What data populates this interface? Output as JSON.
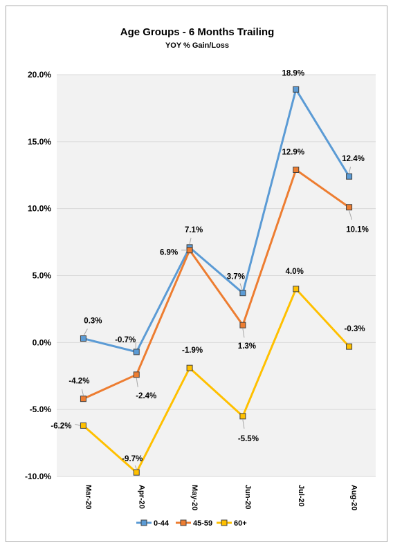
{
  "chart_data": {
    "type": "line",
    "title": "Age Groups - 6 Months Trailing",
    "subtitle": "YOY % Gain/Loss",
    "categories": [
      "Mar-20",
      "Apr-20",
      "May-20",
      "Jun-20",
      "Jul-20",
      "Aug-20"
    ],
    "y_ticks": [
      "-10.0%",
      "-5.0%",
      "0.0%",
      "5.0%",
      "10.0%",
      "15.0%",
      "20.0%"
    ],
    "ylim": [
      -10,
      20
    ],
    "grid": true,
    "legend_position": "bottom",
    "series": [
      {
        "name": "0-44",
        "color": "#5b9bd5",
        "values": [
          0.3,
          -0.7,
          7.1,
          3.7,
          18.9,
          12.4
        ],
        "labels": [
          "0.3%",
          "-0.7%",
          "7.1%",
          "3.7%",
          "18.9%",
          "12.4%"
        ]
      },
      {
        "name": "45-59",
        "color": "#ed7d31",
        "values": [
          -4.2,
          -2.4,
          6.9,
          1.3,
          12.9,
          10.1
        ],
        "labels": [
          "-4.2%",
          "-2.4%",
          "6.9%",
          "1.3%",
          "12.9%",
          "10.1%"
        ]
      },
      {
        "name": "60+",
        "color": "#ffc000",
        "values": [
          -6.2,
          -9.7,
          -1.9,
          -5.5,
          4.0,
          -0.3
        ],
        "labels": [
          "-6.2%",
          "-9.7%",
          "-1.9%",
          "-5.5%",
          "4.0%",
          "-0.3%"
        ]
      }
    ]
  }
}
